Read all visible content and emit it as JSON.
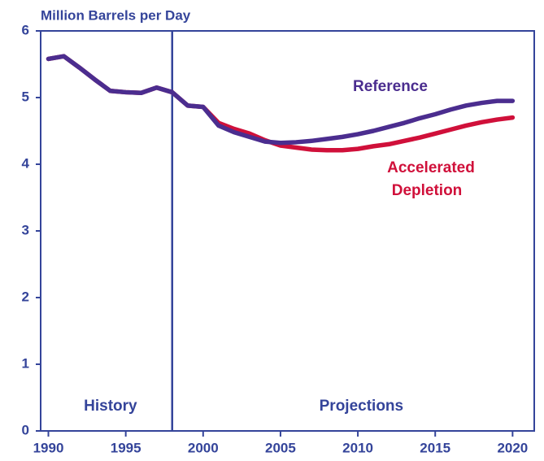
{
  "chart_data": {
    "type": "line",
    "y_label": "Million Barrels per Day",
    "x": [
      1990,
      1991,
      1992,
      1993,
      1994,
      1995,
      1996,
      1997,
      1998,
      1999,
      2000,
      2001,
      2002,
      2003,
      2004,
      2005,
      2006,
      2007,
      2008,
      2009,
      2010,
      2011,
      2012,
      2013,
      2014,
      2015,
      2016,
      2017,
      2018,
      2019,
      2020
    ],
    "series": [
      {
        "name": "Accelerated Depletion",
        "color": "#d0103a",
        "values": [
          5.58,
          5.62,
          5.45,
          5.27,
          5.1,
          5.08,
          5.07,
          5.15,
          5.08,
          4.88,
          4.86,
          4.62,
          4.53,
          4.46,
          4.36,
          4.28,
          4.25,
          4.22,
          4.21,
          4.21,
          4.23,
          4.27,
          4.3,
          4.35,
          4.4,
          4.46,
          4.52,
          4.58,
          4.63,
          4.67,
          4.7
        ]
      },
      {
        "name": "Reference",
        "color": "#4b2d8f",
        "values": [
          5.58,
          5.62,
          5.45,
          5.27,
          5.1,
          5.08,
          5.07,
          5.15,
          5.08,
          4.88,
          4.86,
          4.58,
          4.48,
          4.41,
          4.34,
          4.32,
          4.33,
          4.35,
          4.38,
          4.41,
          4.45,
          4.5,
          4.56,
          4.62,
          4.69,
          4.75,
          4.82,
          4.88,
          4.92,
          4.95,
          4.95
        ]
      }
    ],
    "xlim": [
      1989.5,
      2021.4
    ],
    "xticks": [
      1990,
      1995,
      2000,
      2005,
      2010,
      2015,
      2020
    ],
    "ylim": [
      0,
      6
    ],
    "yticks": [
      0,
      1,
      2,
      3,
      4,
      5,
      6
    ],
    "divider": 1998,
    "annotations": [
      "History",
      "Projections"
    ]
  }
}
